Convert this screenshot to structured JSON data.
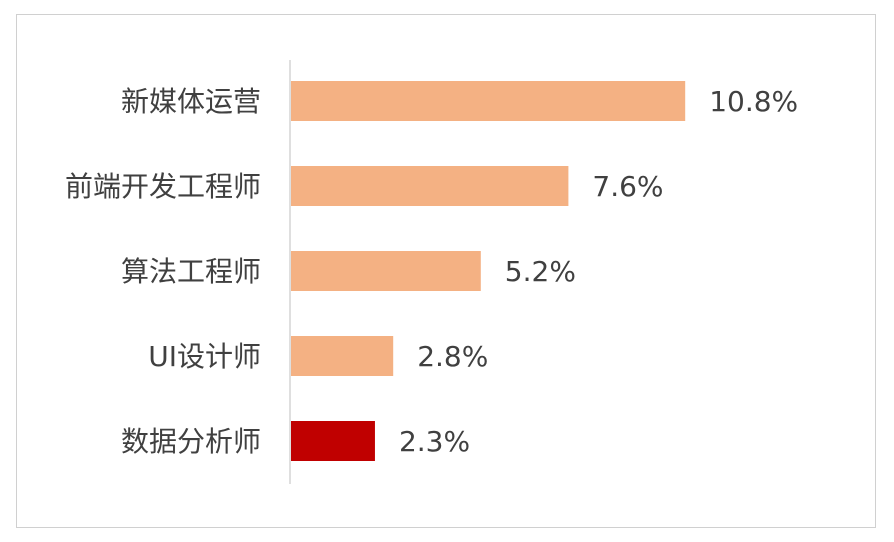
{
  "chart_data": {
    "type": "bar",
    "orientation": "horizontal",
    "title": "",
    "xlabel": "",
    "ylabel": "",
    "categories": [
      "新媒体运营",
      "前端开发工程师",
      "算法工程师",
      "UI设计师",
      "数据分析师"
    ],
    "values": [
      10.8,
      7.6,
      5.2,
      2.8,
      2.3
    ],
    "value_labels": [
      "10.8%",
      "7.6%",
      "5.2%",
      "2.8%",
      "2.3%"
    ],
    "xlim": [
      0,
      13.5
    ],
    "grid": false,
    "legend": "none",
    "colors": [
      "#f4b183",
      "#f4b183",
      "#f4b183",
      "#f4b183",
      "#c00000"
    ]
  }
}
